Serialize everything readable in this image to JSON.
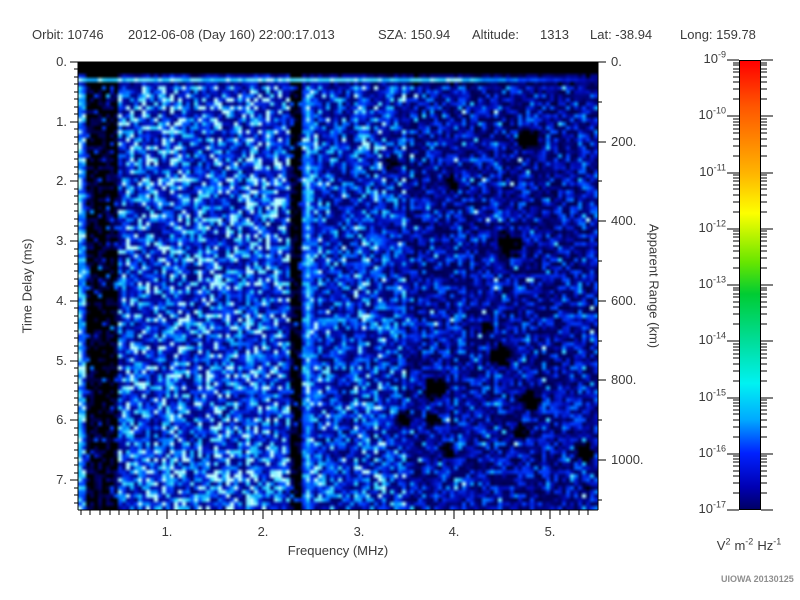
{
  "header": {
    "orbit": "Orbit: 10746",
    "datetime": "2012-06-08 (Day 160) 22:00:17.013",
    "sza": "SZA: 150.94",
    "altitude_label": "Altitude:",
    "altitude_value": "1313",
    "lat": "Lat: -38.94",
    "long": "Long: 159.78"
  },
  "credit": "UIOWA 20130125",
  "chart_data": {
    "type": "heatmap",
    "title": "",
    "x_axis": {
      "label": "Frequency (MHz)",
      "range_mhz": [
        0.07,
        5.5
      ],
      "major_tick_values": [
        1,
        2,
        3,
        4,
        5
      ],
      "major_tick_labels": [
        "1.",
        "2.",
        "3.",
        "4.",
        "5."
      ],
      "minor_tick_step": 0.1
    },
    "y_axis_left": {
      "label": "Time Delay (ms)",
      "range_ms": [
        0,
        7.5
      ],
      "major_tick_values": [
        0,
        1,
        2,
        3,
        4,
        5,
        6,
        7
      ],
      "major_tick_labels": [
        "0.",
        "1.",
        "2.",
        "3.",
        "4.",
        "5.",
        "6.",
        "7."
      ],
      "minor_tick_step": 0.125
    },
    "y_axis_right": {
      "label": "Apparent Range (km)",
      "range_km": [
        0,
        1126
      ],
      "major_tick_values": [
        0,
        200,
        400,
        600,
        800,
        1000
      ],
      "major_tick_labels": [
        "0.",
        "200.",
        "400.",
        "600.",
        "800.",
        "1000."
      ],
      "minor_tick_step": 100
    },
    "colorbar": {
      "scale": "log",
      "tick_base": "10",
      "tick_exponents": [
        "-9",
        "-10",
        "-11",
        "-12",
        "-13",
        "-14",
        "-15",
        "-16",
        "-17"
      ],
      "units_parts": [
        {
          "base": "V",
          "sup": "2"
        },
        {
          "base": "m",
          "sup": "-2"
        },
        {
          "base": "Hz",
          "sup": "-1"
        }
      ],
      "gradient": [
        {
          "pos": 0.0,
          "color": "#ff0000"
        },
        {
          "pos": 0.1,
          "color": "#ff5500"
        },
        {
          "pos": 0.25,
          "color": "#ffb400"
        },
        {
          "pos": 0.34,
          "color": "#fdff00"
        },
        {
          "pos": 0.45,
          "color": "#66e600"
        },
        {
          "pos": 0.52,
          "color": "#00cc33"
        },
        {
          "pos": 0.625,
          "color": "#00dd99"
        },
        {
          "pos": 0.72,
          "color": "#00f2f2"
        },
        {
          "pos": 0.8,
          "color": "#00aaff"
        },
        {
          "pos": 0.875,
          "color": "#0022ff"
        },
        {
          "pos": 0.95,
          "color": "#0000b4"
        },
        {
          "pos": 1.0,
          "color": "#000066"
        }
      ]
    },
    "noise_palette": [
      {
        "v": 0.0,
        "color": "#000000"
      },
      {
        "v": 0.12,
        "color": "#00005a"
      },
      {
        "v": 0.3,
        "color": "#000ab4"
      },
      {
        "v": 0.5,
        "color": "#003cff"
      },
      {
        "v": 0.68,
        "color": "#008cff"
      },
      {
        "v": 0.82,
        "color": "#28d2ff"
      },
      {
        "v": 1.0,
        "color": "#beffff"
      }
    ],
    "features": {
      "blank_band_ms": [
        0,
        0.2
      ],
      "echo_line_ms": 0.3,
      "bright_columns_mhz": [
        0.1,
        2.49
      ],
      "dark_bands_mhz": [
        [
          0.17,
          0.27
        ],
        [
          0.29,
          0.47
        ],
        [
          2.3,
          2.42
        ]
      ],
      "bright_speckle_zone_mhz": [
        0.5,
        2.3
      ],
      "dim_zone_mhz": [
        3.5,
        5.5
      ],
      "bright_blob": {
        "freq_mhz": 0.12,
        "time_delay_ms": 3.45
      }
    }
  }
}
